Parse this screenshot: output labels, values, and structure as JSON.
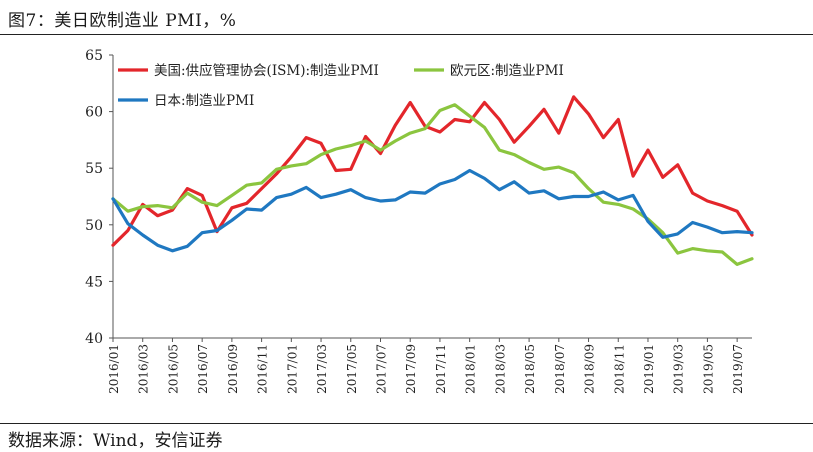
{
  "header": {
    "title": "图7：美日欧制造业 PMI，%"
  },
  "footer": {
    "source": "数据来源：Wind，安信证券"
  },
  "colors": {
    "us": "#e3262b",
    "eu": "#8bc53f",
    "jp": "#1f78c1"
  },
  "chart_data": {
    "type": "line",
    "title": "美日欧制造业 PMI，%",
    "ylim": [
      40,
      65
    ],
    "yticks": [
      40,
      45,
      50,
      55,
      60,
      65
    ],
    "x_tick_labels": [
      "2016/01",
      "2016/03",
      "2016/05",
      "2016/07",
      "2016/09",
      "2016/11",
      "2017/01",
      "2017/03",
      "2017/05",
      "2017/07",
      "2017/09",
      "2017/11",
      "2018/01",
      "2018/03",
      "2018/05",
      "2018/07",
      "2018/09",
      "2018/11",
      "2019/01",
      "2019/03",
      "2019/05",
      "2019/07"
    ],
    "x": [
      "2016/01",
      "2016/02",
      "2016/03",
      "2016/04",
      "2016/05",
      "2016/06",
      "2016/07",
      "2016/08",
      "2016/09",
      "2016/10",
      "2016/11",
      "2016/12",
      "2017/01",
      "2017/02",
      "2017/03",
      "2017/04",
      "2017/05",
      "2017/06",
      "2017/07",
      "2017/08",
      "2017/09",
      "2017/10",
      "2017/11",
      "2017/12",
      "2018/01",
      "2018/02",
      "2018/03",
      "2018/04",
      "2018/05",
      "2018/06",
      "2018/07",
      "2018/08",
      "2018/09",
      "2018/10",
      "2018/11",
      "2018/12",
      "2019/01",
      "2019/02",
      "2019/03",
      "2019/04",
      "2019/05",
      "2019/06",
      "2019/07",
      "2019/08"
    ],
    "legend": [
      {
        "name": "美国:供应管理协会(ISM):制造业PMI",
        "color_key": "us"
      },
      {
        "name": "欧元区:制造业PMI",
        "color_key": "eu"
      },
      {
        "name": "日本:制造业PMI",
        "color_key": "jp"
      }
    ],
    "series": [
      {
        "name": "美国:供应管理协会(ISM):制造业PMI",
        "color_key": "us",
        "values": [
          48.2,
          49.5,
          51.8,
          50.8,
          51.3,
          53.2,
          52.6,
          49.4,
          51.5,
          51.9,
          53.2,
          54.5,
          56.0,
          57.7,
          57.2,
          54.8,
          54.9,
          57.8,
          56.3,
          58.8,
          60.8,
          58.7,
          58.2,
          59.3,
          59.1,
          60.8,
          59.3,
          57.3,
          58.7,
          60.2,
          58.1,
          61.3,
          59.8,
          57.7,
          59.3,
          54.3,
          56.6,
          54.2,
          55.3,
          52.8,
          52.1,
          51.7,
          51.2,
          49.1
        ]
      },
      {
        "name": "欧元区:制造业PMI",
        "color_key": "eu",
        "values": [
          52.3,
          51.2,
          51.6,
          51.7,
          51.5,
          52.8,
          52.0,
          51.7,
          52.6,
          53.5,
          53.7,
          54.9,
          55.2,
          55.4,
          56.2,
          56.7,
          57.0,
          57.4,
          56.6,
          57.4,
          58.1,
          58.5,
          60.1,
          60.6,
          59.6,
          58.6,
          56.6,
          56.2,
          55.5,
          54.9,
          55.1,
          54.6,
          53.2,
          52.0,
          51.8,
          51.4,
          50.5,
          49.3,
          47.5,
          47.9,
          47.7,
          47.6,
          46.5,
          47.0
        ]
      },
      {
        "name": "日本:制造业PMI",
        "color_key": "jp",
        "values": [
          52.3,
          50.1,
          49.1,
          48.2,
          47.7,
          48.1,
          49.3,
          49.5,
          50.4,
          51.4,
          51.3,
          52.4,
          52.7,
          53.3,
          52.4,
          52.7,
          53.1,
          52.4,
          52.1,
          52.2,
          52.9,
          52.8,
          53.6,
          54.0,
          54.8,
          54.1,
          53.1,
          53.8,
          52.8,
          53.0,
          52.3,
          52.5,
          52.5,
          52.9,
          52.2,
          52.6,
          50.3,
          48.9,
          49.2,
          50.2,
          49.8,
          49.3,
          49.4,
          49.3
        ]
      }
    ]
  }
}
